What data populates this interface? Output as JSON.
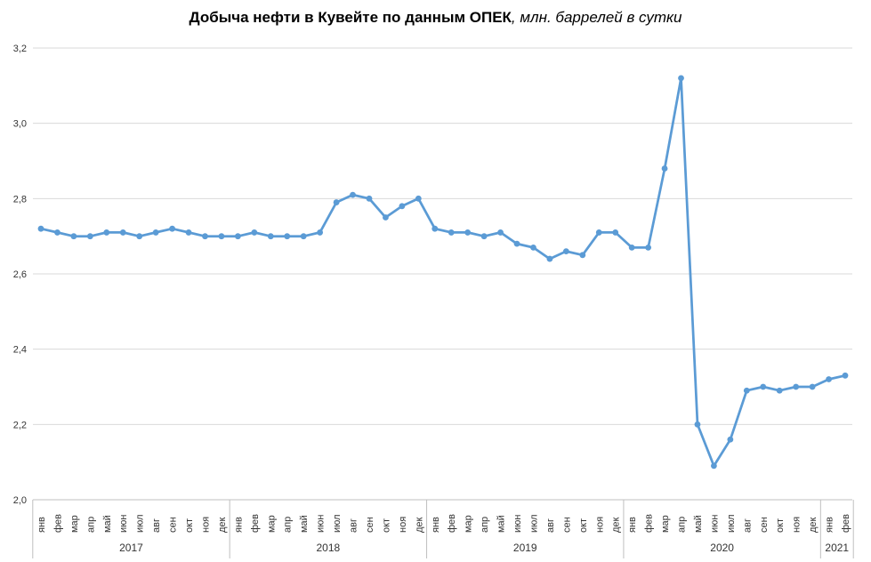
{
  "title": {
    "main": "Добыча нефти в Кувейте по данным ОПЕК",
    "sub": ", млн. баррелей в сутки"
  },
  "colors": {
    "line": "#5B9BD5",
    "marker": "#5B9BD5",
    "gridline": "#D9D9D9",
    "axis": "#BFBFBF",
    "tick_label": "#333333",
    "title_text": "#000000"
  },
  "chart_data": {
    "type": "line",
    "title": "Добыча нефти в Кувейте по данным ОПЕК, млн. баррелей в сутки",
    "xlabel": "",
    "ylabel": "",
    "ylim": [
      2.0,
      3.2
    ],
    "y_tick_step": 0.2,
    "y_tick_labels": [
      "3,2",
      "3,0",
      "2,8",
      "2,6",
      "2,4",
      "2,2",
      "2,0"
    ],
    "grid": "horizontal",
    "legend_position": "none",
    "marker": "circle",
    "month_names": [
      "янв",
      "фев",
      "мар",
      "апр",
      "май",
      "июн",
      "июл",
      "авг",
      "сен",
      "окт",
      "ноя",
      "дек"
    ],
    "year_groups": [
      {
        "label": "2017",
        "count": 12
      },
      {
        "label": "2018",
        "count": 12
      },
      {
        "label": "2019",
        "count": 12
      },
      {
        "label": "2020",
        "count": 12
      },
      {
        "label": "2021",
        "count": 2
      }
    ],
    "series": [
      {
        "name": "Добыча нефти в Кувейте",
        "values": [
          2.72,
          2.71,
          2.7,
          2.7,
          2.71,
          2.71,
          2.7,
          2.71,
          2.72,
          2.71,
          2.7,
          2.7,
          2.7,
          2.71,
          2.7,
          2.7,
          2.7,
          2.71,
          2.79,
          2.81,
          2.8,
          2.75,
          2.78,
          2.8,
          2.72,
          2.71,
          2.71,
          2.7,
          2.71,
          2.68,
          2.67,
          2.64,
          2.66,
          2.65,
          2.71,
          2.71,
          2.67,
          2.67,
          2.88,
          3.12,
          2.2,
          2.09,
          2.16,
          2.29,
          2.3,
          2.29,
          2.3,
          2.3,
          2.32,
          2.33
        ]
      }
    ]
  }
}
